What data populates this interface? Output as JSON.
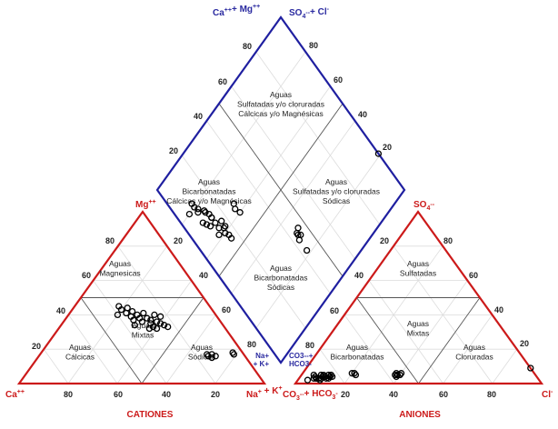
{
  "colors": {
    "triangle": "#cc1a1a",
    "diamond": "#1f1fa0",
    "point": "#000000"
  },
  "vertices": {
    "ca": [
      {
        "t": "Ca"
      },
      {
        "t": "++",
        "sup": true
      }
    ],
    "na_k": [
      {
        "t": "Na"
      },
      {
        "t": "+",
        "sup": true
      },
      {
        "t": " + K"
      },
      {
        "t": "+",
        "sup": true
      }
    ],
    "mg": [
      {
        "t": "Mg"
      },
      {
        "t": "++",
        "sup": true
      }
    ],
    "co3_hco3": [
      {
        "t": "CO"
      },
      {
        "t": "3",
        "sub": true
      },
      {
        "t": "--",
        "sup": true
      },
      {
        "t": "+ HCO"
      },
      {
        "t": "3",
        "sub": true
      },
      {
        "t": "-",
        "sup": true
      }
    ],
    "cl": [
      {
        "t": "Cl"
      },
      {
        "t": "-",
        "sup": true
      }
    ],
    "so4": [
      {
        "t": "SO"
      },
      {
        "t": "4",
        "sub": true
      },
      {
        "t": "--",
        "sup": true
      }
    ],
    "diamond_top_left": [
      {
        "t": "Ca"
      },
      {
        "t": "++",
        "sup": true
      },
      {
        "t": "+ Mg"
      },
      {
        "t": "++",
        "sup": true
      }
    ],
    "diamond_top_right": [
      {
        "t": "SO"
      },
      {
        "t": "4",
        "sub": true
      },
      {
        "t": "--",
        "sup": true
      },
      {
        "t": "+ Cl"
      },
      {
        "t": "-",
        "sup": true
      }
    ],
    "diamond_bottom_left": [
      "Na+",
      "+ K+"
    ],
    "diamond_bottom_right": [
      "CO3--+",
      "HCO3-"
    ]
  },
  "titles": {
    "cations": "CATIONES",
    "anions": "ANIONES"
  },
  "ticks": {
    "cation_bottom": [
      "80",
      "60",
      "40",
      "20"
    ],
    "cation_left": [
      "20",
      "40",
      "60",
      "80"
    ],
    "cation_right": [
      "20",
      "40",
      "60",
      "80"
    ],
    "anion_bottom": [
      "20",
      "40",
      "60",
      "80"
    ],
    "anion_left": [
      "80",
      "60",
      "40",
      "20"
    ],
    "anion_right": [
      "80",
      "60",
      "40",
      "20"
    ],
    "diamond_left": [
      "20",
      "40",
      "60",
      "80"
    ],
    "diamond_right": [
      "80",
      "60",
      "40",
      "20"
    ]
  },
  "regions": {
    "diamond_top": [
      "Aguas",
      "Sulfatadas y/o cloruradas",
      "Cálcicas y/o Magnésicas"
    ],
    "diamond_left": [
      "Aguas",
      "Bicarbonatadas",
      "Cálcicas y/o Magnésicas"
    ],
    "diamond_right": [
      "Aguas",
      "Sulfatadas y/o cloruradas",
      "Sódicas"
    ],
    "diamond_bottom": [
      "Aguas",
      "Bicarbonatadas",
      "Sódicas"
    ],
    "cation_mg": [
      "Aguas",
      "Magnesicas"
    ],
    "cation_mixed": [
      "Aguas",
      "Mixtas"
    ],
    "cation_ca": [
      "Aguas",
      "Cálcicas"
    ],
    "cation_na": [
      "Aguas",
      "Sódicas"
    ],
    "anion_so4": [
      "Aguas",
      "Sulfatadas"
    ],
    "anion_mixed": [
      "Aguas",
      "Mixtas"
    ],
    "anion_hco3": [
      "Aguas",
      "Bicarbonatadas"
    ],
    "anion_cl": [
      "Aguas",
      "Cloruradas"
    ]
  },
  "chart_data": {
    "type": "scatter",
    "subtype": "piper",
    "units": "% meq/l",
    "samples": [
      {
        "mg": 45,
        "na": 18,
        "so4": 4,
        "cl": 6
      },
      {
        "mg": 44,
        "na": 22,
        "so4": 3,
        "cl": 8
      },
      {
        "mg": 43,
        "na": 20,
        "so4": 5,
        "cl": 5
      },
      {
        "mg": 42,
        "na": 25,
        "so4": 4,
        "cl": 9
      },
      {
        "mg": 41,
        "na": 23,
        "so4": 3,
        "cl": 7
      },
      {
        "mg": 40,
        "na": 28,
        "so4": 4,
        "cl": 10
      },
      {
        "mg": 40,
        "na": 20,
        "so4": 2,
        "cl": 4
      },
      {
        "mg": 39,
        "na": 26,
        "so4": 5,
        "cl": 8
      },
      {
        "mg": 38,
        "na": 30,
        "so4": 3,
        "cl": 11
      },
      {
        "mg": 38,
        "na": 33,
        "so4": 4,
        "cl": 10
      },
      {
        "mg": 37,
        "na": 35,
        "so4": 5,
        "cl": 12
      },
      {
        "mg": 37,
        "na": 28,
        "so4": 3,
        "cl": 6
      },
      {
        "mg": 36,
        "na": 38,
        "so4": 4,
        "cl": 13
      },
      {
        "mg": 36,
        "na": 32,
        "so4": 2,
        "cl": 9
      },
      {
        "mg": 35,
        "na": 40,
        "so4": 3,
        "cl": 12
      },
      {
        "mg": 35,
        "na": 36,
        "so4": 4,
        "cl": 10
      },
      {
        "mg": 34,
        "na": 42,
        "so4": 5,
        "cl": 11
      },
      {
        "mg": 34,
        "na": 30,
        "so4": 3,
        "cl": 7
      },
      {
        "mg": 33,
        "na": 44,
        "so4": 4,
        "cl": 12
      },
      {
        "mg": 33,
        "na": 38,
        "so4": 3,
        "cl": 9
      },
      {
        "mg": 32,
        "na": 37,
        "so4": 6,
        "cl": 20
      },
      {
        "mg": 32,
        "na": 40,
        "so4": 5,
        "cl": 22
      },
      {
        "mg": 40,
        "na": 35,
        "so4": 6,
        "cl": 21
      },
      {
        "mg": 39,
        "na": 38,
        "so4": 4,
        "cl": 12
      },
      {
        "mg": 41,
        "na": 30,
        "so4": 5,
        "cl": 9
      },
      {
        "mg": 16,
        "na": 69,
        "so4": 5,
        "cl": 39
      },
      {
        "mg": 17,
        "na": 70,
        "so4": 6,
        "cl": 38
      },
      {
        "mg": 15,
        "na": 71,
        "so4": 5,
        "cl": 40
      },
      {
        "mg": 16,
        "na": 72,
        "so4": 4,
        "cl": 39
      },
      {
        "mg": 17,
        "na": 68,
        "so4": 6,
        "cl": 40
      },
      {
        "mg": 18,
        "na": 78,
        "so4": 5,
        "cl": 38
      },
      {
        "mg": 17,
        "na": 79,
        "so4": 9,
        "cl": 91
      }
    ]
  }
}
